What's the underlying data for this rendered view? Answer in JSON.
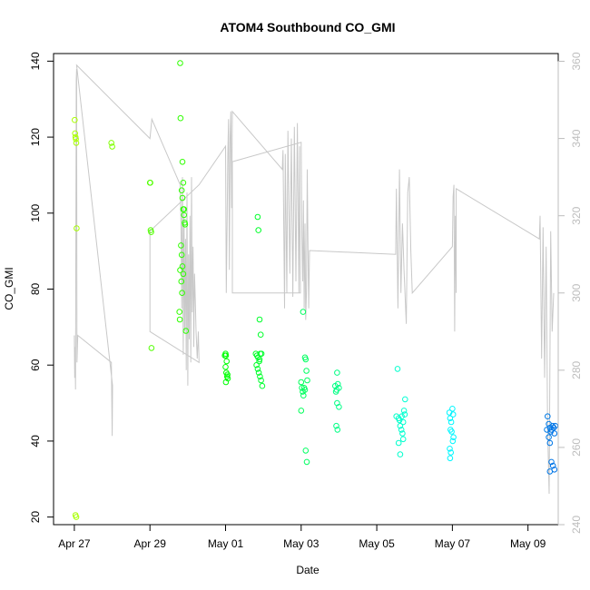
{
  "chart_data": {
    "type": "scatter",
    "title": "ATOM4 Southbound CO_GMI",
    "xlabel": "Date",
    "ylabel": "CO_GMI",
    "x_ticks": [
      {
        "label": "Apr 27",
        "day": 0
      },
      {
        "label": "Apr 29",
        "day": 2
      },
      {
        "label": "May 01",
        "day": 4
      },
      {
        "label": "May 03",
        "day": 6
      },
      {
        "label": "May 05",
        "day": 8
      },
      {
        "label": "May 07",
        "day": 10
      },
      {
        "label": "May 09",
        "day": 12
      }
    ],
    "xlim_days": [
      -0.55,
      12.8
    ],
    "ylim": [
      18,
      142
    ],
    "y_ticks": [
      20,
      40,
      60,
      80,
      100,
      120,
      140
    ],
    "right_axis": {
      "ylim": [
        240,
        362
      ],
      "ticks": [
        240,
        260,
        280,
        300,
        320,
        340,
        360
      ],
      "color": "#bdbdbd"
    },
    "colors": {
      "axis": "#000000",
      "right_axis": "#bdbdbd",
      "line": "#c8c8c8"
    },
    "line_series": {
      "name": "",
      "points": [
        [
          0.0,
          289
        ],
        [
          0.01,
          278
        ],
        [
          0.02,
          286
        ],
        [
          0.03,
          275
        ],
        [
          0.05,
          355
        ],
        [
          0.06,
          358
        ],
        [
          0.07,
          282
        ],
        [
          0.09,
          289
        ],
        [
          0.98,
          282
        ],
        [
          1.0,
          263
        ],
        [
          1.01,
          276
        ],
        [
          0.06,
          359
        ],
        [
          2.0,
          340
        ],
        [
          2.05,
          345
        ],
        [
          2.8,
          328
        ],
        [
          2.82,
          318
        ],
        [
          2.84,
          296
        ],
        [
          2.86,
          330
        ],
        [
          2.88,
          284
        ],
        [
          2.9,
          322
        ],
        [
          2.92,
          290
        ],
        [
          2.94,
          314
        ],
        [
          2.96,
          280
        ],
        [
          2.98,
          326
        ],
        [
          3.0,
          276
        ],
        [
          3.02,
          310
        ],
        [
          3.04,
          288
        ],
        [
          3.06,
          320
        ],
        [
          3.08,
          282
        ],
        [
          3.1,
          330
        ],
        [
          3.12,
          295
        ],
        [
          3.14,
          312
        ],
        [
          3.16,
          286
        ],
        [
          3.18,
          305
        ],
        [
          3.2,
          298
        ],
        [
          3.22,
          290
        ],
        [
          3.25,
          283
        ],
        [
          3.28,
          290
        ],
        [
          3.3,
          282
        ],
        [
          2.0,
          290
        ],
        [
          2.0,
          316
        ],
        [
          3.3,
          328
        ],
        [
          4.0,
          338
        ],
        [
          4.02,
          300
        ],
        [
          4.04,
          318
        ],
        [
          4.06,
          336
        ],
        [
          4.08,
          345
        ],
        [
          4.1,
          306
        ],
        [
          4.12,
          340
        ],
        [
          4.14,
          347
        ],
        [
          4.16,
          322
        ],
        [
          4.18,
          347
        ],
        [
          5.5,
          332
        ],
        [
          5.52,
          337
        ],
        [
          5.56,
          296
        ],
        [
          5.58,
          336
        ],
        [
          5.62,
          300
        ],
        [
          5.65,
          342
        ],
        [
          5.7,
          305
        ],
        [
          5.74,
          340
        ],
        [
          5.78,
          299
        ],
        [
          5.82,
          343
        ],
        [
          5.86,
          303
        ],
        [
          5.9,
          344
        ],
        [
          5.94,
          300
        ],
        [
          5.96,
          338
        ],
        [
          5.98,
          300
        ],
        [
          4.18,
          300
        ],
        [
          4.18,
          334
        ],
        [
          6.0,
          339
        ],
        [
          6.02,
          315
        ],
        [
          6.04,
          303
        ],
        [
          6.06,
          324
        ],
        [
          6.08,
          296
        ],
        [
          6.1,
          318
        ],
        [
          6.12,
          293
        ],
        [
          6.14,
          300
        ],
        [
          6.16,
          332
        ],
        [
          6.18,
          312
        ],
        [
          6.2,
          296
        ],
        [
          6.22,
          311
        ],
        [
          8.5,
          310
        ],
        [
          8.52,
          327
        ],
        [
          8.56,
          296
        ],
        [
          8.6,
          332
        ],
        [
          8.64,
          300
        ],
        [
          8.68,
          318
        ],
        [
          8.72,
          306
        ],
        [
          8.78,
          292
        ],
        [
          8.82,
          326
        ],
        [
          8.86,
          330
        ],
        [
          8.9,
          311
        ],
        [
          8.94,
          300
        ],
        [
          10.0,
          312
        ],
        [
          10.02,
          325
        ],
        [
          10.04,
          328
        ],
        [
          10.06,
          290
        ],
        [
          10.08,
          320
        ],
        [
          10.1,
          300
        ],
        [
          10.1,
          327
        ],
        [
          12.3,
          314
        ],
        [
          12.32,
          320
        ],
        [
          12.36,
          283
        ],
        [
          12.4,
          317
        ],
        [
          12.44,
          278
        ],
        [
          12.48,
          312
        ],
        [
          12.52,
          265
        ],
        [
          12.56,
          248
        ],
        [
          12.6,
          316
        ],
        [
          12.64,
          290
        ],
        [
          12.68,
          300
        ]
      ]
    },
    "scatter_series": {
      "name": "",
      "points": [
        [
          0.01,
          124.5
        ],
        [
          0.02,
          121
        ],
        [
          0.03,
          120
        ],
        [
          0.04,
          119.5
        ],
        [
          0.05,
          118.5
        ],
        [
          0.06,
          96
        ],
        [
          0.03,
          20.5
        ],
        [
          0.05,
          20
        ],
        [
          0.98,
          118.5
        ],
        [
          1.0,
          117.5
        ],
        [
          2.0,
          108
        ],
        [
          2.01,
          108
        ],
        [
          2.02,
          95.5
        ],
        [
          2.03,
          95
        ],
        [
          2.04,
          64.5
        ],
        [
          2.8,
          139.5
        ],
        [
          2.81,
          125
        ],
        [
          2.86,
          113.5
        ],
        [
          2.88,
          108
        ],
        [
          2.84,
          106
        ],
        [
          2.86,
          104
        ],
        [
          2.88,
          101
        ],
        [
          2.9,
          99.5
        ],
        [
          2.92,
          97.5
        ],
        [
          2.82,
          91.5
        ],
        [
          2.84,
          89
        ],
        [
          2.86,
          86
        ],
        [
          2.8,
          85
        ],
        [
          2.83,
          82
        ],
        [
          2.85,
          79
        ],
        [
          2.78,
          74
        ],
        [
          2.79,
          72
        ],
        [
          2.88,
          84
        ],
        [
          2.95,
          69
        ],
        [
          2.9,
          101
        ],
        [
          2.93,
          97
        ],
        [
          4.0,
          63
        ],
        [
          4.01,
          62.5
        ],
        [
          4.03,
          61
        ],
        [
          4.0,
          59.5
        ],
        [
          4.02,
          58
        ],
        [
          4.04,
          57
        ],
        [
          4.01,
          55.5
        ],
        [
          4.05,
          57.5
        ],
        [
          4.06,
          56.5
        ],
        [
          3.98,
          62.5
        ],
        [
          4.85,
          99
        ],
        [
          4.87,
          95.5
        ],
        [
          4.9,
          72
        ],
        [
          4.93,
          68
        ],
        [
          4.8,
          63
        ],
        [
          4.83,
          62.5
        ],
        [
          4.86,
          62
        ],
        [
          4.89,
          61
        ],
        [
          4.92,
          63
        ],
        [
          4.95,
          63
        ],
        [
          4.82,
          60
        ],
        [
          4.85,
          59
        ],
        [
          4.88,
          58
        ],
        [
          4.91,
          57
        ],
        [
          4.94,
          56
        ],
        [
          4.97,
          54.5
        ],
        [
          4.9,
          61.5
        ],
        [
          6.0,
          55.5
        ],
        [
          6.02,
          54
        ],
        [
          6.04,
          53
        ],
        [
          6.06,
          52
        ],
        [
          6.08,
          54
        ],
        [
          6.1,
          62
        ],
        [
          6.12,
          61.5
        ],
        [
          6.14,
          58.5
        ],
        [
          6.16,
          56
        ],
        [
          6.05,
          74
        ],
        [
          6.0,
          48
        ],
        [
          6.12,
          37.5
        ],
        [
          6.15,
          34.5
        ],
        [
          6.1,
          53.5
        ],
        [
          6.95,
          58
        ],
        [
          6.97,
          55
        ],
        [
          7.0,
          54
        ],
        [
          6.92,
          53
        ],
        [
          6.95,
          50
        ],
        [
          7.0,
          49
        ],
        [
          6.93,
          44
        ],
        [
          6.96,
          43
        ],
        [
          6.9,
          54.5
        ],
        [
          6.94,
          53.5
        ],
        [
          8.55,
          59
        ],
        [
          8.58,
          46
        ],
        [
          8.6,
          45.5
        ],
        [
          8.62,
          44
        ],
        [
          8.65,
          43
        ],
        [
          8.68,
          42
        ],
        [
          8.7,
          40.5
        ],
        [
          8.72,
          48
        ],
        [
          8.75,
          51
        ],
        [
          8.58,
          39.5
        ],
        [
          8.62,
          36.5
        ],
        [
          8.66,
          46.5
        ],
        [
          8.7,
          45
        ],
        [
          8.74,
          47
        ],
        [
          8.52,
          46.5
        ],
        [
          9.92,
          47.5
        ],
        [
          9.94,
          46
        ],
        [
          9.97,
          45
        ],
        [
          10.0,
          48.5
        ],
        [
          10.02,
          47
        ],
        [
          9.95,
          43
        ],
        [
          9.98,
          42.5
        ],
        [
          10.01,
          40
        ],
        [
          9.93,
          38
        ],
        [
          9.96,
          37
        ],
        [
          9.94,
          35.5
        ],
        [
          10.03,
          41
        ],
        [
          12.52,
          46.5
        ],
        [
          12.55,
          44.5
        ],
        [
          12.58,
          43.5
        ],
        [
          12.6,
          42.5
        ],
        [
          12.62,
          43
        ],
        [
          12.65,
          44
        ],
        [
          12.68,
          43.5
        ],
        [
          12.7,
          42
        ],
        [
          12.55,
          41
        ],
        [
          12.58,
          39.5
        ],
        [
          12.62,
          34.5
        ],
        [
          12.66,
          33.5
        ],
        [
          12.7,
          32.5
        ],
        [
          12.58,
          32
        ],
        [
          12.72,
          44
        ],
        [
          12.5,
          43
        ]
      ]
    },
    "grid": false,
    "legend": "none"
  }
}
